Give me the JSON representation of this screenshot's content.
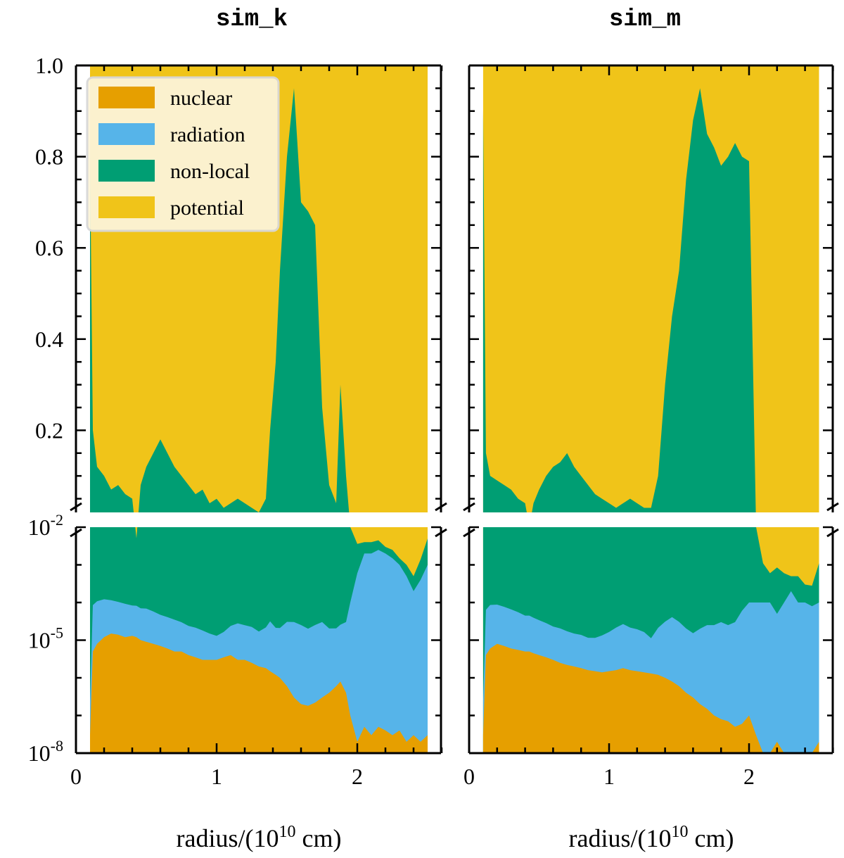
{
  "chart_data": {
    "type": "area",
    "stacked": true,
    "normalized": true,
    "legend": {
      "placement": "top-left (in first panel)",
      "entries": [
        "nuclear",
        "radiation",
        "non-local",
        "potential"
      ]
    },
    "colors": {
      "nuclear": "#E69F00",
      "radiation": "#56B4E9",
      "non-local": "#009E73",
      "potential": "#F0C419",
      "axis": "#000000",
      "legend_bg": "#FCF4D8"
    },
    "y_axis": {
      "broken": true,
      "upper": {
        "scale": "linear",
        "range": [
          0.02,
          1.0
        ],
        "ticks": [
          "0.2",
          "0.4",
          "0.6",
          "0.8",
          "1.0"
        ]
      },
      "lower": {
        "scale": "log",
        "range": [
          1e-08,
          0.01
        ],
        "ticks": [
          "10-8",
          "10-5",
          "10-2"
        ]
      },
      "tick_labels": [
        {
          "base": "10",
          "exp": "-2"
        },
        {
          "base": "10",
          "exp": "-5"
        },
        {
          "base": "10",
          "exp": "-8"
        }
      ]
    },
    "x_axis": {
      "label": "radius/(10",
      "label_exp": "10",
      "label_unit": " cm)",
      "range": [
        -0.05,
        2.62
      ],
      "ticks": [
        "0",
        "1",
        "2"
      ]
    },
    "panels": [
      {
        "title": "sim_k",
        "x": [
          0.1,
          0.12,
          0.15,
          0.2,
          0.25,
          0.3,
          0.35,
          0.4,
          0.43,
          0.46,
          0.5,
          0.55,
          0.6,
          0.65,
          0.7,
          0.75,
          0.8,
          0.85,
          0.9,
          0.95,
          1.0,
          1.05,
          1.1,
          1.15,
          1.2,
          1.25,
          1.3,
          1.35,
          1.38,
          1.42,
          1.45,
          1.5,
          1.55,
          1.6,
          1.65,
          1.7,
          1.75,
          1.8,
          1.85,
          1.88,
          1.92,
          1.95,
          2.0,
          2.05,
          2.1,
          2.15,
          2.2,
          2.25,
          2.3,
          2.35,
          2.4,
          2.45,
          2.5
        ],
        "series": [
          {
            "name": "nuclear",
            "values": [
              3e-08,
              5e-06,
              8e-06,
              1.2e-05,
              1.5e-05,
              1.4e-05,
              1.2e-05,
              1.3e-05,
              1.2e-05,
              1e-05,
              9e-06,
              8e-06,
              7e-06,
              6e-06,
              5e-06,
              5e-06,
              4e-06,
              3.5e-06,
              3e-06,
              3e-06,
              3e-06,
              3.5e-06,
              4e-06,
              3e-06,
              3e-06,
              2.5e-06,
              2e-06,
              1.8e-06,
              1.5e-06,
              1.2e-06,
              1e-06,
              6e-07,
              3e-07,
              2e-07,
              1.8e-07,
              2.2e-07,
              3e-07,
              4e-07,
              6e-07,
              8e-07,
              4e-07,
              1e-07,
              2e-08,
              5e-08,
              3e-08,
              5e-08,
              4e-08,
              3e-08,
              4e-08,
              2e-08,
              3e-08,
              2e-08,
              3e-08
            ]
          },
          {
            "name": "radiation",
            "values": [
              2e-07,
              8e-05,
              0.0001,
              0.00011,
              0.0001,
              9e-05,
              8e-05,
              7e-05,
              7e-05,
              6e-05,
              6e-05,
              5e-05,
              4e-05,
              3.5e-05,
              3e-05,
              2.5e-05,
              2e-05,
              1.8e-05,
              1.5e-05,
              1.2e-05,
              1e-05,
              1.3e-05,
              2e-05,
              2.5e-05,
              2.2e-05,
              2e-05,
              1.5e-05,
              2e-05,
              3e-05,
              2e-05,
              2e-05,
              3e-05,
              3e-05,
              2.5e-05,
              2e-05,
              2.5e-05,
              3e-05,
              2e-05,
              2e-05,
              2.5e-05,
              3e-05,
              0.0001,
              0.0006,
              0.002,
              0.002,
              0.0025,
              0.002,
              0.0015,
              0.001,
              0.0005,
              0.0002,
              0.0004,
              0.001
            ]
          },
          {
            "name": "non-local",
            "values": [
              0.8,
              0.2,
              0.12,
              0.1,
              0.07,
              0.08,
              0.06,
              0.05,
              0.005,
              0.08,
              0.12,
              0.15,
              0.18,
              0.15,
              0.12,
              0.1,
              0.08,
              0.06,
              0.07,
              0.04,
              0.05,
              0.03,
              0.04,
              0.05,
              0.04,
              0.03,
              0.02,
              0.05,
              0.2,
              0.35,
              0.55,
              0.8,
              0.95,
              0.7,
              0.68,
              0.65,
              0.25,
              0.08,
              0.04,
              0.3,
              0.1,
              0.01,
              0.003,
              0.002,
              0.002,
              0.002,
              0.001,
              0.001,
              0.0005,
              0.0005,
              0.0003,
              0.001,
              0.004
            ]
          },
          {
            "name": "potential",
            "values": [
              0.2,
              0.8,
              0.88,
              0.9,
              0.93,
              0.92,
              0.94,
              0.95,
              0.995,
              0.92,
              0.88,
              0.85,
              0.82,
              0.85,
              0.88,
              0.9,
              0.92,
              0.94,
              0.93,
              0.96,
              0.95,
              0.97,
              0.96,
              0.95,
              0.96,
              0.97,
              0.98,
              0.95,
              0.8,
              0.65,
              0.45,
              0.2,
              0.05,
              0.3,
              0.32,
              0.35,
              0.75,
              0.92,
              0.96,
              0.7,
              0.9,
              0.99,
              0.996,
              0.996,
              0.996,
              0.995,
              0.997,
              0.998,
              0.999,
              0.999,
              0.999,
              0.998,
              0.995
            ]
          }
        ]
      },
      {
        "title": "sim_m",
        "x": [
          0.1,
          0.12,
          0.15,
          0.2,
          0.25,
          0.3,
          0.35,
          0.4,
          0.43,
          0.46,
          0.5,
          0.55,
          0.6,
          0.65,
          0.7,
          0.75,
          0.8,
          0.85,
          0.9,
          0.95,
          1.0,
          1.05,
          1.1,
          1.15,
          1.2,
          1.25,
          1.3,
          1.35,
          1.4,
          1.45,
          1.5,
          1.55,
          1.6,
          1.65,
          1.7,
          1.75,
          1.8,
          1.85,
          1.9,
          1.95,
          2.0,
          2.05,
          2.1,
          2.15,
          2.2,
          2.25,
          2.3,
          2.35,
          2.4,
          2.45,
          2.5
        ],
        "series": [
          {
            "name": "nuclear",
            "values": [
              3e-08,
              4e-06,
              6e-06,
              8e-06,
              7e-06,
              6e-06,
              5.5e-06,
              5e-06,
              5e-06,
              4.5e-06,
              4e-06,
              3.5e-06,
              3e-06,
              2.5e-06,
              2.2e-06,
              2e-06,
              1.8e-06,
              1.6e-06,
              1.5e-06,
              1.4e-06,
              1.5e-06,
              1.6e-06,
              1.8e-06,
              1.6e-06,
              1.5e-06,
              1.4e-06,
              1.3e-06,
              1.2e-06,
              1e-06,
              8e-07,
              6e-07,
              4e-07,
              3e-07,
              2e-07,
              1.5e-07,
              1e-07,
              8e-08,
              7e-08,
              5e-08,
              6e-08,
              1e-07,
              3e-08,
              1e-08,
              1e-08,
              2e-08,
              1e-08,
              1e-08,
              1e-08,
              1e-08,
              1e-08,
              2e-08
            ]
          },
          {
            "name": "radiation",
            "values": [
              2e-07,
              6e-05,
              8e-05,
              8e-05,
              7e-05,
              6e-05,
              5e-05,
              4e-05,
              4e-05,
              3.5e-05,
              3e-05,
              2.5e-05,
              2e-05,
              1.8e-05,
              1.5e-05,
              1.3e-05,
              1.2e-05,
              1e-05,
              1e-05,
              1.2e-05,
              1.5e-05,
              2e-05,
              2.5e-05,
              2e-05,
              1.8e-05,
              1.5e-05,
              1e-05,
              2e-05,
              3e-05,
              4e-05,
              3e-05,
              2e-05,
              1.5e-05,
              2e-05,
              2.5e-05,
              2.5e-05,
              3e-05,
              2.5e-05,
              3e-05,
              6e-05,
              0.0001,
              0.0001,
              0.0001,
              0.0001,
              5e-05,
              0.0001,
              0.0002,
              0.0001,
              0.0001,
              8e-05,
              0.0001
            ]
          },
          {
            "name": "non-local",
            "values": [
              0.9,
              0.15,
              0.1,
              0.09,
              0.08,
              0.07,
              0.05,
              0.04,
              0.01,
              0.04,
              0.07,
              0.1,
              0.12,
              0.13,
              0.15,
              0.12,
              0.1,
              0.08,
              0.06,
              0.05,
              0.04,
              0.03,
              0.04,
              0.05,
              0.04,
              0.03,
              0.03,
              0.1,
              0.3,
              0.45,
              0.55,
              0.75,
              0.88,
              0.95,
              0.85,
              0.82,
              0.78,
              0.8,
              0.83,
              0.8,
              0.79,
              0.01,
              0.001,
              0.0005,
              0.0008,
              0.0005,
              0.0003,
              0.0004,
              0.0002,
              0.0002,
              0.001
            ]
          },
          {
            "name": "potential",
            "values": [
              0.1,
              0.85,
              0.9,
              0.91,
              0.92,
              0.93,
              0.95,
              0.96,
              0.99,
              0.96,
              0.93,
              0.9,
              0.88,
              0.87,
              0.85,
              0.88,
              0.9,
              0.92,
              0.94,
              0.95,
              0.96,
              0.97,
              0.96,
              0.95,
              0.96,
              0.97,
              0.97,
              0.9,
              0.7,
              0.55,
              0.45,
              0.25,
              0.12,
              0.05,
              0.15,
              0.18,
              0.22,
              0.2,
              0.17,
              0.2,
              0.21,
              0.99,
              0.999,
              0.9995,
              0.9992,
              0.9995,
              0.9997,
              0.9996,
              0.9998,
              0.9998,
              0.999
            ]
          }
        ]
      }
    ]
  }
}
